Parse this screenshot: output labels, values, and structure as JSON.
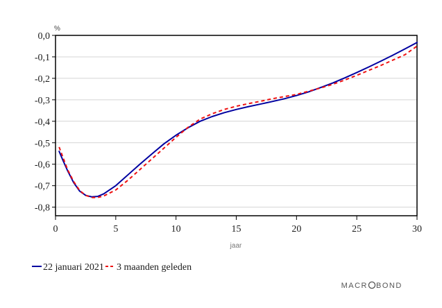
{
  "chart_data": {
    "type": "line",
    "ylabel": "%",
    "xlabel": "jaar",
    "xlim": [
      0,
      30
    ],
    "ylim": [
      -0.84,
      0.0
    ],
    "x_ticks": [
      "0",
      "5",
      "10",
      "15",
      "20",
      "25",
      "30"
    ],
    "y_ticks": [
      "0,0",
      "-0,1",
      "-0,2",
      "-0,3",
      "-0,4",
      "-0,5",
      "-0,6",
      "-0,7",
      "-0,8"
    ],
    "grid": "horizontal",
    "legend_position": "bottom-left",
    "series": [
      {
        "name": "22 januari 2021",
        "color": "#0000a0",
        "style": "solid",
        "x": [
          0.3,
          0.6,
          1,
          1.5,
          2,
          2.5,
          3,
          3.5,
          4,
          5,
          6,
          7,
          8,
          9,
          10,
          11,
          12,
          13,
          14,
          15,
          16,
          17,
          18,
          19,
          20,
          21,
          22,
          23,
          24,
          25,
          26,
          27,
          28,
          29,
          30
        ],
        "y": [
          -0.54,
          -0.58,
          -0.63,
          -0.685,
          -0.725,
          -0.745,
          -0.752,
          -0.75,
          -0.738,
          -0.7,
          -0.65,
          -0.6,
          -0.552,
          -0.505,
          -0.465,
          -0.43,
          -0.4,
          -0.378,
          -0.36,
          -0.345,
          -0.332,
          -0.32,
          -0.308,
          -0.295,
          -0.28,
          -0.263,
          -0.243,
          -0.222,
          -0.198,
          -0.173,
          -0.147,
          -0.12,
          -0.092,
          -0.063,
          -0.033
        ]
      },
      {
        "name": "3 maanden geleden",
        "color": "#ee1111",
        "style": "dashed",
        "x": [
          0.3,
          0.6,
          1,
          1.5,
          2,
          2.5,
          3,
          3.5,
          4,
          5,
          6,
          7,
          8,
          9,
          10,
          11,
          12,
          13,
          14,
          15,
          16,
          17,
          18,
          19,
          20,
          21,
          22,
          23,
          24,
          25,
          26,
          27,
          28,
          29,
          30
        ],
        "y": [
          -0.52,
          -0.565,
          -0.625,
          -0.68,
          -0.722,
          -0.745,
          -0.755,
          -0.755,
          -0.748,
          -0.72,
          -0.675,
          -0.625,
          -0.575,
          -0.525,
          -0.475,
          -0.428,
          -0.39,
          -0.365,
          -0.345,
          -0.33,
          -0.318,
          -0.307,
          -0.295,
          -0.285,
          -0.275,
          -0.26,
          -0.245,
          -0.228,
          -0.208,
          -0.186,
          -0.163,
          -0.14,
          -0.115,
          -0.09,
          -0.05
        ]
      }
    ]
  },
  "legend": {
    "items": [
      "22 januari 2021",
      "3 maanden geleden"
    ]
  },
  "brand": {
    "pre": "MACR",
    "post": "BOND"
  }
}
